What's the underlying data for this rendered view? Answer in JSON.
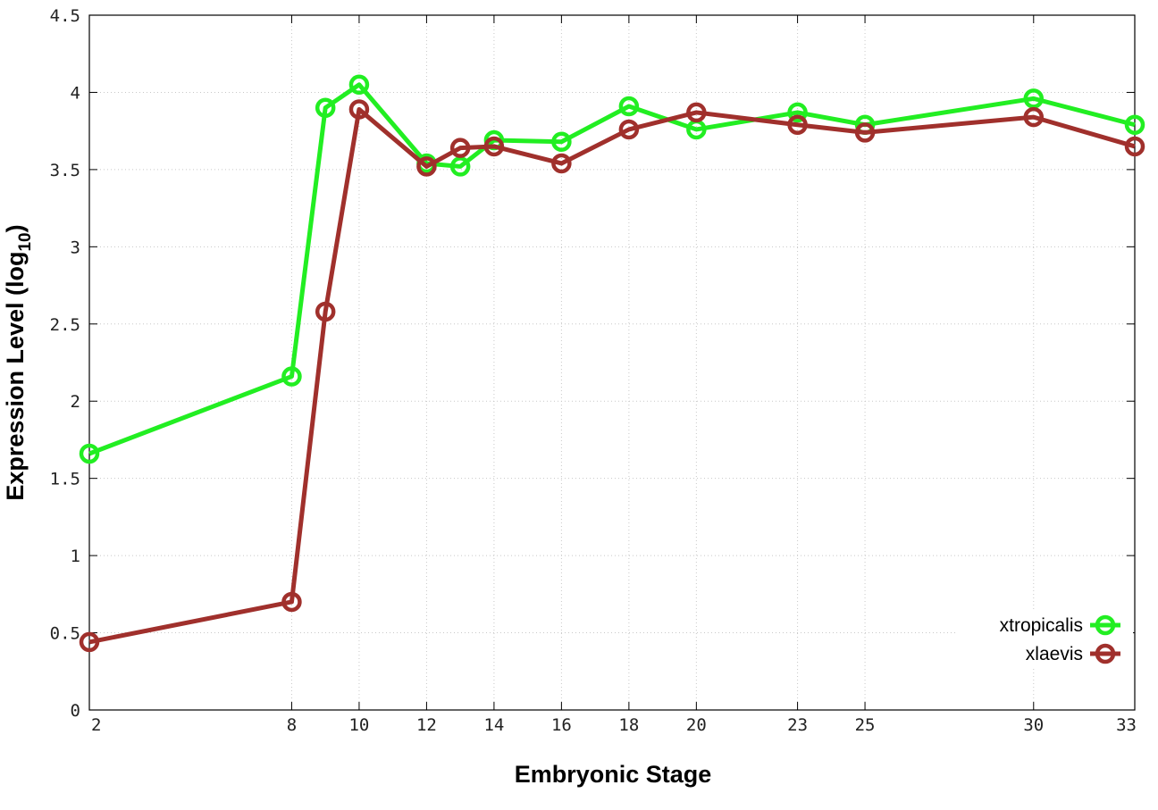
{
  "chart_data": {
    "type": "line",
    "xlabel": "Embryonic Stage",
    "ylabel": "Expression Level (log",
    "ylabel_sub": "10",
    "ylabel_close": ")",
    "ylim": [
      0,
      4.5
    ],
    "yticks": [
      "0",
      "0.5",
      "1",
      "1.5",
      "2",
      "2.5",
      "3",
      "3.5",
      "4",
      "4.5"
    ],
    "categories": [
      "2",
      "8",
      "9",
      "10",
      "12",
      "13",
      "14",
      "16",
      "18",
      "20",
      "23",
      "25",
      "30",
      "33"
    ],
    "xticks": [
      "2",
      "8",
      "10",
      "12",
      "14",
      "16",
      "18",
      "20",
      "23",
      "25",
      "30",
      "33"
    ],
    "grid": true,
    "legend_position": "bottom-right",
    "series": [
      {
        "name": "xtropicalis",
        "color": "#22ee22",
        "values": [
          1.66,
          2.16,
          3.9,
          4.05,
          3.54,
          3.52,
          3.69,
          3.68,
          3.91,
          3.76,
          3.87,
          3.79,
          3.96,
          3.79
        ]
      },
      {
        "name": "xlaevis",
        "color": "#a0302c",
        "values": [
          0.44,
          0.7,
          2.58,
          3.89,
          3.52,
          3.64,
          3.65,
          3.54,
          3.76,
          3.87,
          3.79,
          3.74,
          3.84,
          3.65
        ]
      }
    ]
  }
}
